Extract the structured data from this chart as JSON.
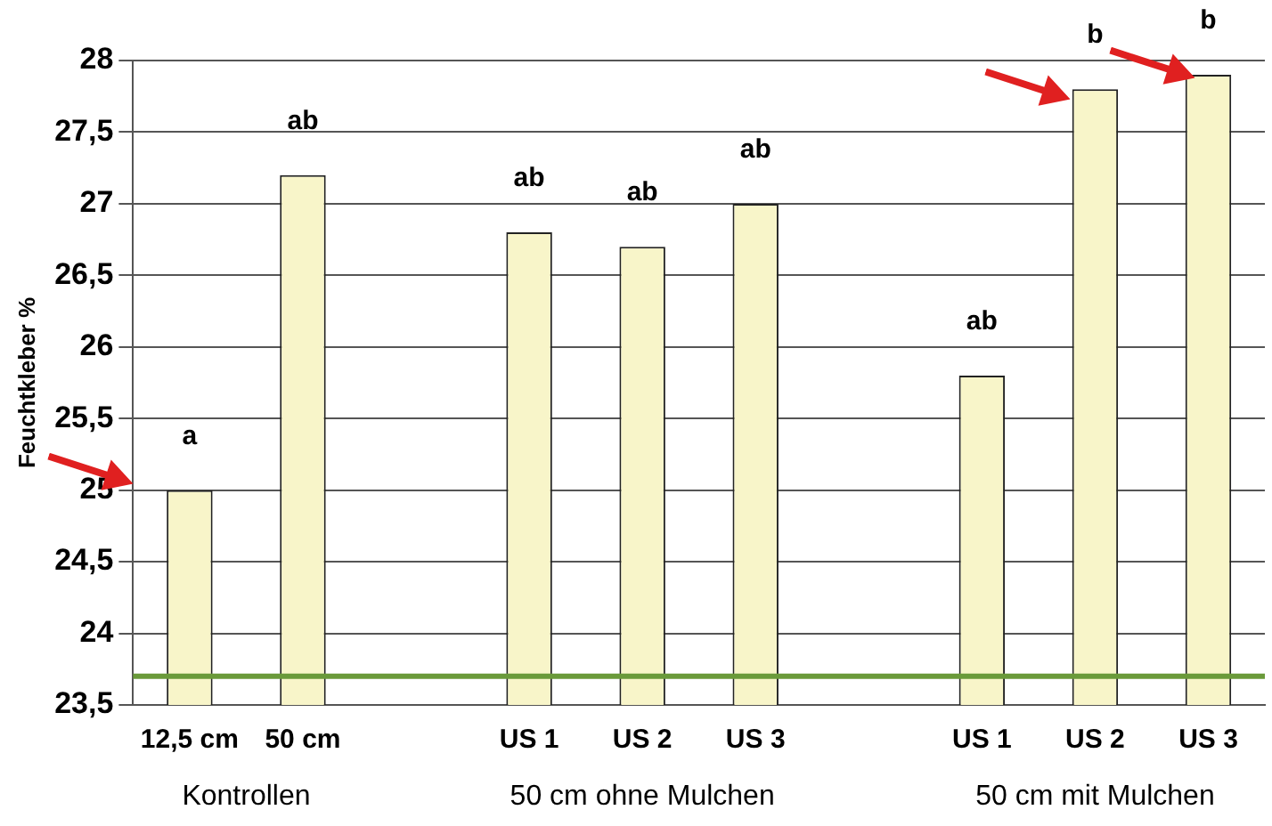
{
  "chart_data": {
    "type": "bar",
    "ylabel": "Feuchtkleber %",
    "categories": [
      "12,5 cm",
      "50 cm",
      null,
      "US 1",
      "US 2",
      "US 3",
      null,
      "US 1",
      "US 2",
      "US 3"
    ],
    "values": [
      25.0,
      27.2,
      null,
      26.8,
      26.7,
      27.0,
      null,
      25.8,
      27.8,
      27.9
    ],
    "value_labels": [
      "a",
      "ab",
      null,
      "ab",
      "ab",
      "ab",
      null,
      "ab",
      "b",
      "b"
    ],
    "color": "#f8f5c9",
    "ylim": [
      23.5,
      28
    ],
    "yticks": [
      {
        "value": 23.5,
        "label": "23,5"
      },
      24,
      {
        "value": 24.5,
        "label": "24,5"
      },
      25,
      {
        "value": 25.5,
        "label": "25,5"
      },
      26,
      {
        "value": 26.5,
        "label": "26,5"
      },
      27,
      {
        "value": 27.5,
        "label": "27,5"
      },
      28
    ],
    "grid": "y",
    "ref_lines": [
      {
        "axis": "y",
        "value": 23.7,
        "color": "#6a9a3a"
      }
    ],
    "annotations": [
      "Kontrollen",
      "50 cm ohne Mulchen",
      "50 cm mit Mulchen"
    ]
  }
}
